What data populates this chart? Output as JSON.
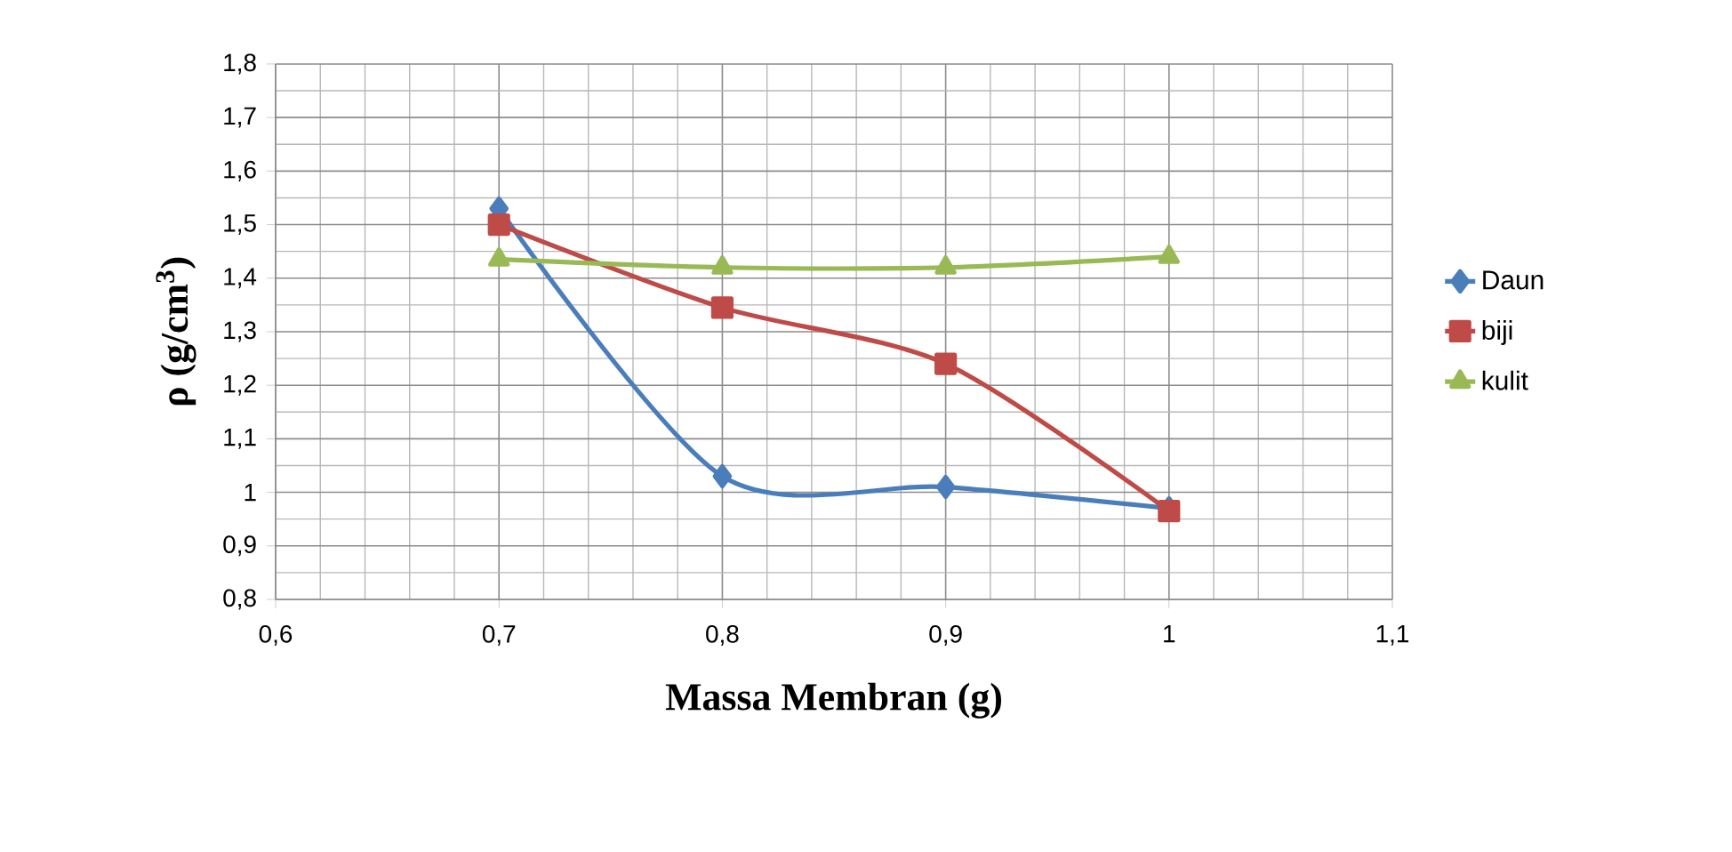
{
  "chart_data": {
    "type": "line",
    "xlabel": "Massa Membran (g)",
    "ylabel": "ρ (g/cm$^{3}$)",
    "x": [
      0.7,
      0.8,
      0.9,
      1
    ],
    "series": [
      {
        "name": "Daun",
        "color": "#4a7ebb",
        "marker": "diamond",
        "values": [
          1.53,
          1.03,
          1.01,
          0.97
        ]
      },
      {
        "name": "biji",
        "color": "#be4b48",
        "marker": "square",
        "values": [
          1.5,
          1.345,
          1.24,
          0.965
        ]
      },
      {
        "name": "kulit",
        "color": "#98b954",
        "marker": "triangle",
        "values": [
          1.435,
          1.42,
          1.42,
          1.44
        ]
      }
    ],
    "xlim": [
      0.6,
      1.1
    ],
    "xticks": [
      {
        "value": 0.6,
        "label": "0,6"
      },
      {
        "value": 0.7,
        "label": "0,7"
      },
      {
        "value": 0.8,
        "label": "0,8"
      },
      {
        "value": 0.9,
        "label": "0,9"
      },
      1,
      {
        "value": 1.1,
        "label": "1,1"
      }
    ],
    "ylim": [
      0.8,
      1.8
    ],
    "yticks": [
      {
        "value": 0.8,
        "label": "0,8"
      },
      {
        "value": 0.9,
        "label": "0,9"
      },
      1,
      {
        "value": 1.1,
        "label": "1,1"
      },
      {
        "value": 1.2,
        "label": "1,2"
      },
      {
        "value": 1.3,
        "label": "1,3"
      },
      {
        "value": 1.4,
        "label": "1,4"
      },
      {
        "value": 1.5,
        "label": "1,5"
      },
      {
        "value": 1.6,
        "label": "1,6"
      },
      {
        "value": 1.7,
        "label": "1,7"
      },
      {
        "value": 1.8,
        "label": "1,8"
      }
    ],
    "grid": true,
    "legend": "right",
    "line_style": "solid"
  }
}
